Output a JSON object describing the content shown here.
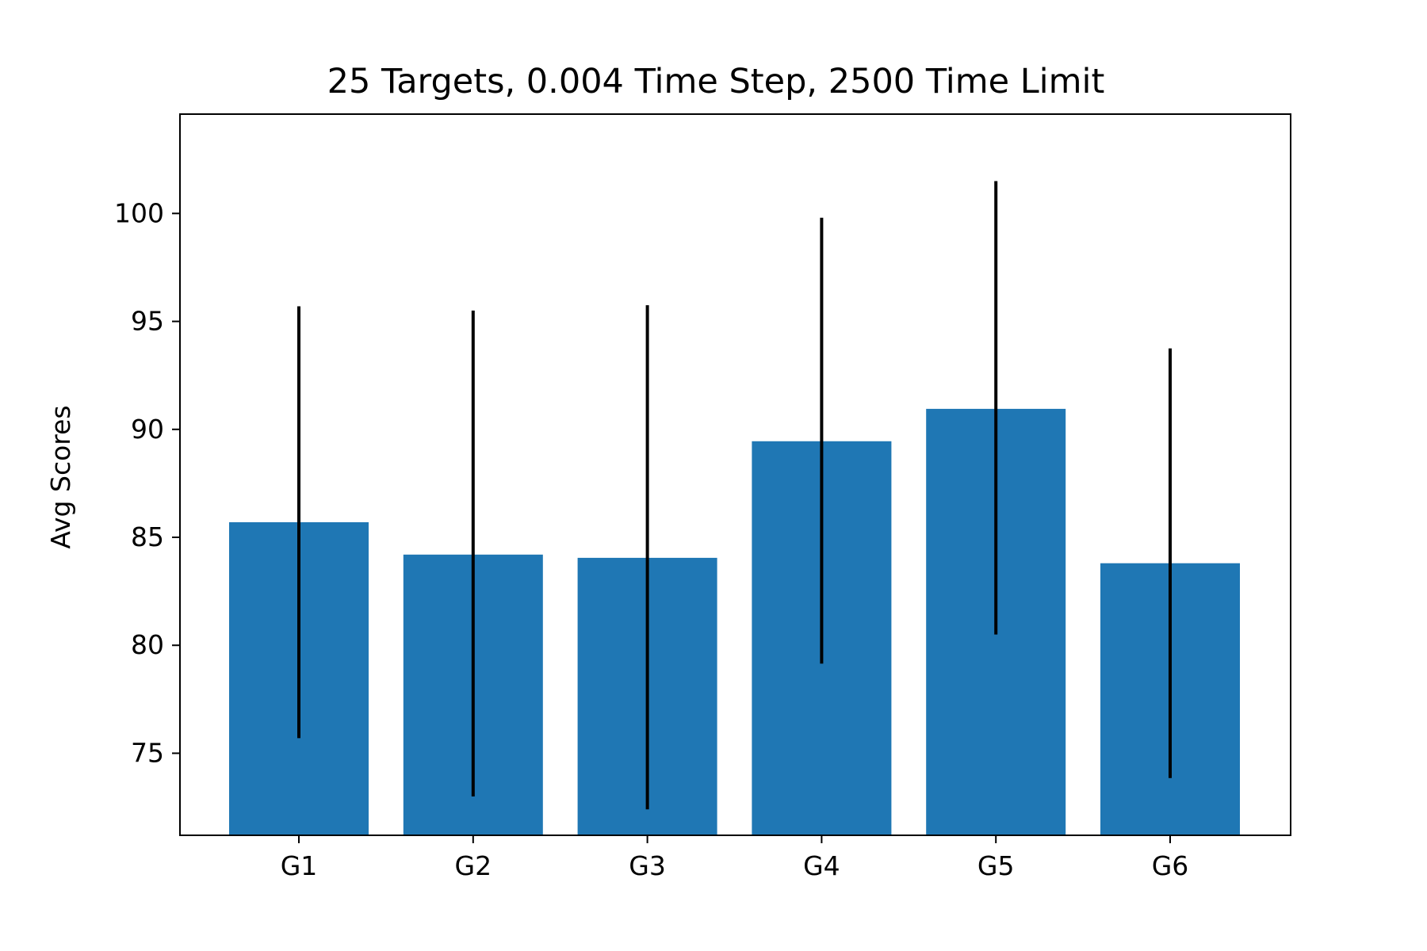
{
  "chart_data": {
    "type": "bar",
    "title": "25 Targets, 0.004 Time Step, 2500 Time Limit",
    "xlabel": "",
    "ylabel": "Avg Scores",
    "categories": [
      "G1",
      "G2",
      "G3",
      "G4",
      "G5",
      "G6"
    ],
    "values": [
      85.7,
      84.2,
      84.05,
      89.45,
      90.95,
      83.8
    ],
    "error_low": [
      75.7,
      73.0,
      72.4,
      79.15,
      80.5,
      73.85
    ],
    "error_high": [
      95.7,
      95.5,
      95.75,
      99.8,
      101.5,
      93.75
    ],
    "ylim": [
      71.2,
      104.6
    ],
    "yticks": [
      75,
      80,
      85,
      90,
      95,
      100
    ],
    "bar_color": "#1f77b4",
    "error_color": "#000000",
    "grid": false,
    "legend": "none"
  }
}
